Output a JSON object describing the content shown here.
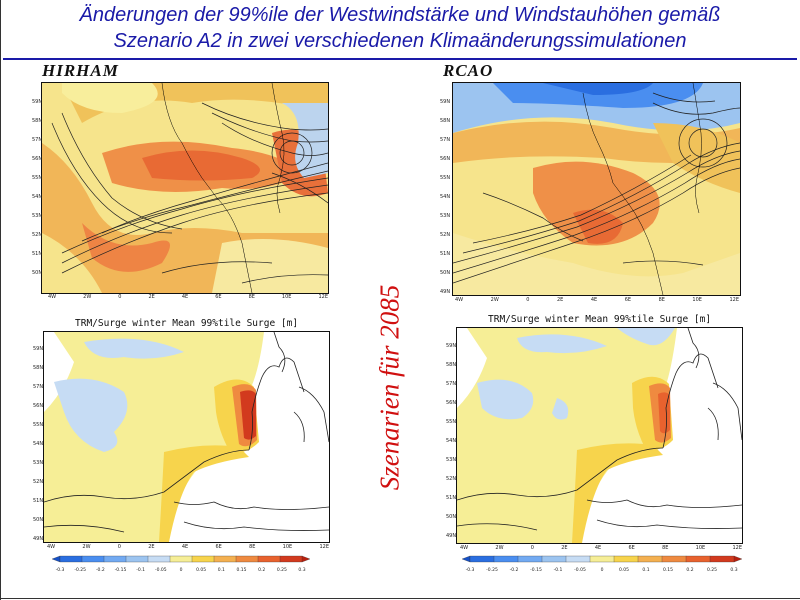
{
  "slide": {
    "title_line1": "Änderungen der 99%ile der Westwindstärke und Windstauhöhen gemäß",
    "title_line2": "Szenario A2 in zwei verschiedenen Klimaänderungssimulationen",
    "vertical_caption": "Szenarien für 2085",
    "accent_color": "#1a1aa8",
    "caption_color": "#d01010"
  },
  "panels": {
    "hirham_label": "HIRHAM",
    "rcao_label": "RCAO",
    "surge_title": "TRM/Surge winter Mean 99%tile Surge [m]"
  },
  "wind_axes": {
    "lat_ticks": [
      "59N",
      "58N",
      "57N",
      "56N",
      "55N",
      "54N",
      "53N",
      "52N",
      "51N",
      "50N",
      "49N"
    ],
    "lon_ticks": [
      "4W",
      "2W",
      "0",
      "2E",
      "4E",
      "6E",
      "8E",
      "10E",
      "12E"
    ]
  },
  "surge_axes": {
    "lat_ticks": [
      "59N",
      "58N",
      "57N",
      "56N",
      "55N",
      "54N",
      "53N",
      "52N",
      "51N",
      "50N",
      "49N"
    ],
    "lon_ticks": [
      "4W",
      "2W",
      "0",
      "2E",
      "4E",
      "6E",
      "8E",
      "10E",
      "12E"
    ]
  },
  "colorbar": {
    "labels": [
      "-0.3",
      "-0.25",
      "-0.2",
      "-0.15",
      "-0.1",
      "-0.05",
      "0",
      "0.05",
      "0.1",
      "0.15",
      "0.2",
      "0.25",
      "0.3"
    ],
    "colors": [
      "#1450c8",
      "#2a6ee0",
      "#4a8ef0",
      "#72aaf2",
      "#9cc4f0",
      "#c6dcf4",
      "#f6ee96",
      "#f7d44c",
      "#f4b050",
      "#ef8a40",
      "#e8622e",
      "#d23a1e",
      "#b8200e"
    ]
  }
}
